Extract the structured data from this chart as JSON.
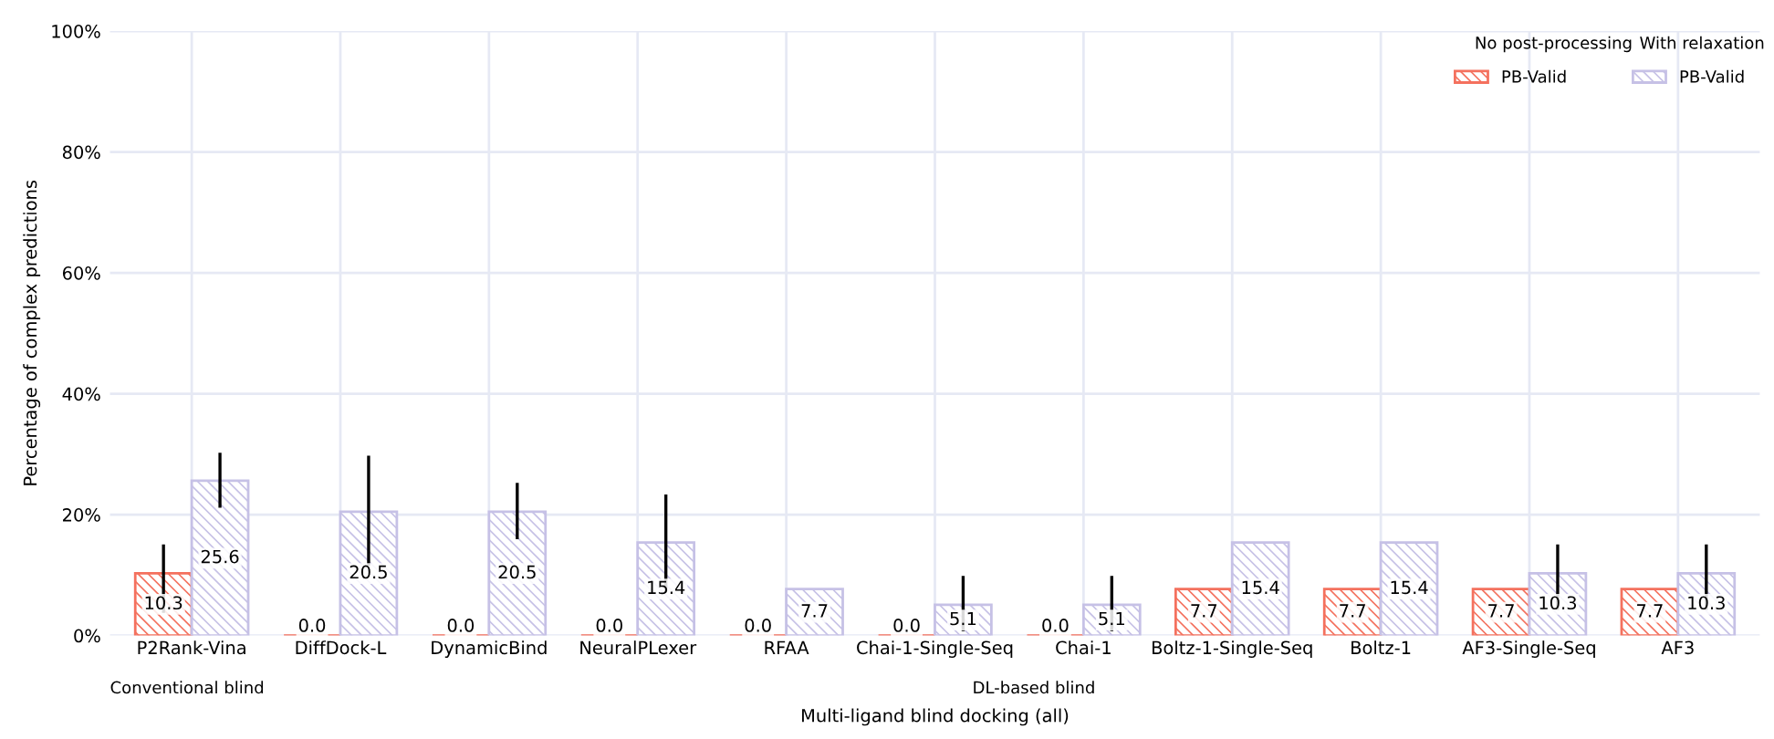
{
  "chart_data": {
    "type": "bar",
    "xlabel": "Multi-ligand blind docking (all)",
    "ylabel": "Percentage of complex predictions",
    "categories": [
      "P2Rank-Vina",
      "DiffDock-L",
      "DynamicBind",
      "NeuralPLexer",
      "RFAA",
      "Chai-1-Single-Seq",
      "Chai-1",
      "Boltz-1-Single-Seq",
      "Boltz-1",
      "AF3-Single-Seq",
      "AF3"
    ],
    "series": [
      {
        "name": "PB-Valid",
        "color": "#f4715e",
        "values": [
          10.3,
          0.0,
          0.0,
          0.0,
          0.0,
          0.0,
          0.0,
          7.7,
          7.7,
          7.7,
          7.7
        ],
        "errors": [
          [
            4.0,
            14.8
          ],
          null,
          null,
          null,
          null,
          null,
          null,
          null,
          null,
          null,
          null
        ],
        "value_labels": [
          "10.3",
          "0.0",
          "0.0",
          "0.0",
          "0.0",
          "0.0",
          "0.0",
          "7.7",
          "7.7",
          "7.7",
          "7.7"
        ]
      },
      {
        "name": "PB-Valid",
        "color": "#c6c1e6",
        "values": [
          25.6,
          20.5,
          20.5,
          15.4,
          7.7,
          5.1,
          5.1,
          15.4,
          15.4,
          10.3,
          10.3
        ],
        "errors": [
          [
            21.4,
            30.0
          ],
          [
            11.8,
            29.5
          ],
          [
            16.2,
            25.0
          ],
          [
            7.6,
            23.1
          ],
          null,
          [
            1.0,
            9.6
          ],
          [
            1.0,
            9.6
          ],
          null,
          null,
          [
            4.5,
            14.8
          ],
          [
            4.5,
            14.8
          ]
        ],
        "value_labels": [
          "25.6",
          "20.5",
          "20.5",
          "15.4",
          "7.7",
          "5.1",
          "5.1",
          "15.4",
          "15.4",
          "10.3",
          "10.3"
        ]
      }
    ],
    "annotations": [
      "No post-processing",
      "With relaxation",
      "Conventional blind",
      "DL-based blind"
    ],
    "ylim": [
      0,
      100
    ],
    "yticks": [
      {
        "value": 0,
        "label": "0%"
      },
      {
        "value": 20,
        "label": "20%"
      },
      {
        "value": 40,
        "label": "40%"
      },
      {
        "value": 60,
        "label": "60%"
      },
      {
        "value": 80,
        "label": "80%"
      },
      {
        "value": 100,
        "label": "100%"
      }
    ],
    "grid": true,
    "legend": "top right"
  }
}
